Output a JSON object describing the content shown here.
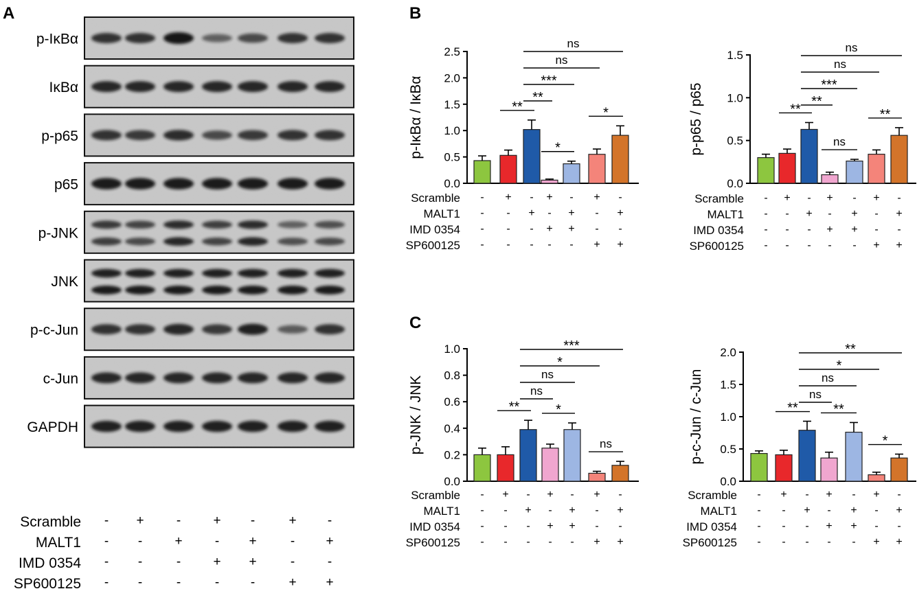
{
  "panel_labels": [
    "A",
    "B",
    "C"
  ],
  "conditions": {
    "row_labels": [
      "Scramble",
      "MALT1",
      "IMD 0354",
      "SP600125"
    ],
    "rows": [
      [
        "-",
        "+",
        "-",
        "+",
        "-",
        "+",
        "-"
      ],
      [
        "-",
        "-",
        "+",
        "-",
        "+",
        "-",
        "+"
      ],
      [
        "-",
        "-",
        "-",
        "+",
        "+",
        "-",
        "-"
      ],
      [
        "-",
        "-",
        "-",
        "-",
        "-",
        "+",
        "+"
      ]
    ]
  },
  "blot": {
    "rows": [
      {
        "label": "p-IκBα",
        "bands": 1
      },
      {
        "label": "IκBα",
        "bands": 1
      },
      {
        "label": "p-p65",
        "bands": 1
      },
      {
        "label": "p65",
        "bands": 1
      },
      {
        "label": "p-JNK",
        "bands": 2
      },
      {
        "label": "JNK",
        "bands": 2
      },
      {
        "label": "p-c-Jun",
        "bands": 1
      },
      {
        "label": "c-Jun",
        "bands": 1
      },
      {
        "label": "GAPDH",
        "bands": 1
      }
    ]
  },
  "colors": {
    "bars": [
      "#8dc63f",
      "#e8282b",
      "#1f5aa8",
      "#f0a6cf",
      "#9db6e3",
      "#f4847a",
      "#d3742a"
    ],
    "blot_bg": "#c8c8c8",
    "band": "#141414"
  },
  "chart_data": [
    {
      "type": "bar",
      "panel": "B",
      "ylabel": "p-IκBα / IκBα",
      "ylim": [
        0,
        2.5
      ],
      "yticks": [
        "0.0",
        "0.5",
        "1.0",
        "1.5",
        "2.0",
        "2.5"
      ],
      "values": [
        0.43,
        0.53,
        1.02,
        0.06,
        0.37,
        0.55,
        0.91
      ],
      "errors": [
        0.09,
        0.1,
        0.18,
        0.02,
        0.05,
        0.1,
        0.18
      ],
      "significance": [
        {
          "from": 1,
          "to": 2,
          "label": "**"
        },
        {
          "from": 3,
          "to": 4,
          "label": "*"
        },
        {
          "from": 5,
          "to": 6,
          "label": "*"
        },
        {
          "from": 2,
          "to": 3,
          "label": "**"
        },
        {
          "from": 2,
          "to": 4,
          "label": "***"
        },
        {
          "from": 2,
          "to": 5,
          "label": "ns"
        },
        {
          "from": 2,
          "to": 6,
          "label": "ns"
        }
      ]
    },
    {
      "type": "bar",
      "panel": "B",
      "ylabel": "p-p65 / p65",
      "ylim": [
        0,
        1.5
      ],
      "yticks": [
        "0.0",
        "0.5",
        "1.0",
        "1.5"
      ],
      "values": [
        0.3,
        0.35,
        0.63,
        0.1,
        0.26,
        0.34,
        0.56
      ],
      "errors": [
        0.04,
        0.05,
        0.08,
        0.03,
        0.02,
        0.05,
        0.09
      ],
      "significance": [
        {
          "from": 1,
          "to": 2,
          "label": "**"
        },
        {
          "from": 3,
          "to": 4,
          "label": "ns"
        },
        {
          "from": 5,
          "to": 6,
          "label": "**"
        },
        {
          "from": 2,
          "to": 3,
          "label": "**"
        },
        {
          "from": 2,
          "to": 4,
          "label": "***"
        },
        {
          "from": 2,
          "to": 5,
          "label": "ns"
        },
        {
          "from": 2,
          "to": 6,
          "label": "ns"
        }
      ]
    },
    {
      "type": "bar",
      "panel": "C",
      "ylabel": "p-JNK / JNK",
      "ylim": [
        0,
        1.0
      ],
      "yticks": [
        "0.0",
        "0.2",
        "0.4",
        "0.6",
        "0.8",
        "1.0"
      ],
      "values": [
        0.2,
        0.2,
        0.39,
        0.25,
        0.39,
        0.06,
        0.12
      ],
      "errors": [
        0.05,
        0.06,
        0.07,
        0.03,
        0.05,
        0.015,
        0.03
      ],
      "significance": [
        {
          "from": 1,
          "to": 2,
          "label": "**"
        },
        {
          "from": 3,
          "to": 4,
          "label": "*"
        },
        {
          "from": 5,
          "to": 6,
          "label": "ns"
        },
        {
          "from": 2,
          "to": 3,
          "label": "ns"
        },
        {
          "from": 2,
          "to": 4,
          "label": "ns"
        },
        {
          "from": 2,
          "to": 5,
          "label": "*"
        },
        {
          "from": 2,
          "to": 6,
          "label": "***"
        }
      ]
    },
    {
      "type": "bar",
      "panel": "C",
      "ylabel": "p-c-Jun / c-Jun",
      "ylim": [
        0,
        2.0
      ],
      "yticks": [
        "0.0",
        "0.5",
        "1.0",
        "1.5",
        "2.0"
      ],
      "values": [
        0.43,
        0.41,
        0.79,
        0.36,
        0.76,
        0.1,
        0.36
      ],
      "errors": [
        0.04,
        0.07,
        0.14,
        0.09,
        0.15,
        0.04,
        0.06
      ],
      "significance": [
        {
          "from": 1,
          "to": 2,
          "label": "**"
        },
        {
          "from": 3,
          "to": 4,
          "label": "**"
        },
        {
          "from": 5,
          "to": 6,
          "label": "*"
        },
        {
          "from": 2,
          "to": 3,
          "label": "ns"
        },
        {
          "from": 2,
          "to": 4,
          "label": "ns"
        },
        {
          "from": 2,
          "to": 5,
          "label": "*"
        },
        {
          "from": 2,
          "to": 6,
          "label": "**"
        }
      ]
    }
  ]
}
